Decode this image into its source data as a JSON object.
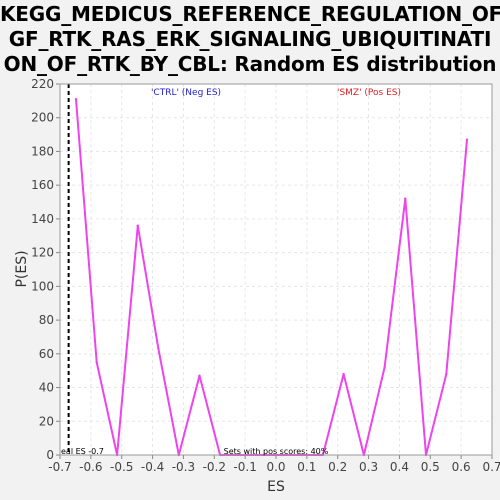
{
  "chart_data": {
    "type": "line",
    "title_lines": [
      "KEGG_MEDICUS_REFERENCE_REGULATION_OF_",
      "GF_RTK_RAS_ERK_SIGNALING_UBIQUITINATI",
      "ON_OF_RTK_BY_CBL: Random ES distribution"
    ],
    "xlabel": "ES",
    "ylabel": "P(ES)",
    "xlim": [
      -0.7,
      0.7
    ],
    "ylim": [
      0,
      220
    ],
    "xticks": [
      -0.7,
      -0.6,
      -0.5,
      -0.4,
      -0.3,
      -0.2,
      -0.1,
      0.0,
      0.1,
      0.2,
      0.3,
      0.4,
      0.5,
      0.6,
      0.7
    ],
    "xtick_labels": [
      "-0.7",
      "-0.6",
      "-0.5",
      "-0.4",
      "-0.3",
      "-0.2",
      "-0.1",
      "0.0",
      "0.1",
      "0.2",
      "0.3",
      "0.4",
      "0.5",
      "0.6",
      "0.7"
    ],
    "yticks": [
      0,
      20,
      40,
      60,
      80,
      100,
      120,
      140,
      160,
      180,
      200,
      220
    ],
    "ytick_labels": [
      "0",
      "20",
      "40",
      "60",
      "80",
      "100",
      "120",
      "140",
      "160",
      "180",
      "200",
      "220"
    ],
    "grid": true,
    "series": [
      {
        "color": "#ee44ee",
        "x": [
          -0.648,
          -0.581,
          -0.515,
          -0.448,
          -0.381,
          -0.315,
          -0.248,
          -0.181,
          -0.115,
          -0.048,
          0.019,
          0.085,
          0.152,
          0.219,
          0.285,
          0.352,
          0.419,
          0.486,
          0.552,
          0.619
        ],
        "y": [
          211,
          55,
          0,
          136,
          63,
          0,
          47,
          0,
          0,
          0,
          0,
          0,
          0,
          48,
          0,
          52,
          152,
          0,
          48,
          187
        ]
      }
    ],
    "vline": {
      "x": -0.672,
      "style": "dashed",
      "color": "#000000"
    },
    "annotations": {
      "neg_label": "'CTRL' (Neg ES)",
      "neg_color": "#2222cc",
      "pos_label": "'SMZ' (Pos ES)",
      "pos_color": "#dd2222",
      "real_es_text": "eal ES -0.7",
      "pos_scores_text": "Sets with pos scores: 40%"
    }
  }
}
